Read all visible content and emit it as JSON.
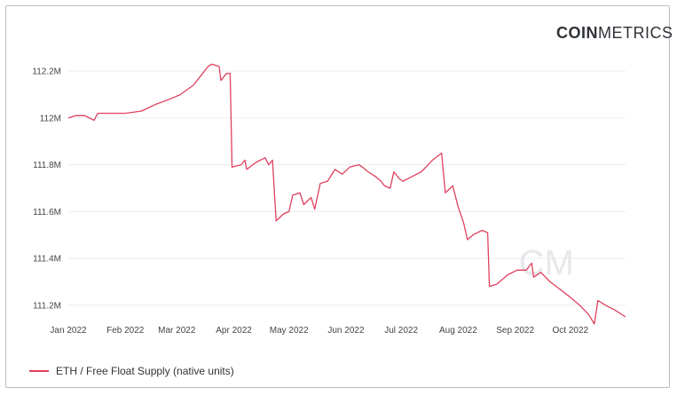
{
  "logo": {
    "bold": "COIN",
    "regular": "METRICS"
  },
  "watermark": "CM",
  "colors": {
    "series": "#e0405e",
    "grid": "#ececec",
    "logo": "#2f3338"
  },
  "chart_data": {
    "type": "line",
    "title": "",
    "xlabel": "",
    "ylabel": "",
    "legend_position": "bottom-left",
    "grid": true,
    "xlim": [
      "2022-01-01",
      "2022-10-31"
    ],
    "ylim": [
      111.15,
      112.25
    ],
    "x_ticks": [
      "Jan 2022",
      "Feb 2022",
      "Mar 2022",
      "Apr 2022",
      "May 2022",
      "Jun 2022",
      "Jul 2022",
      "Aug 2022",
      "Sep 2022",
      "Oct 2022"
    ],
    "y_ticks": [
      {
        "value": 112.2,
        "label": "112.2M"
      },
      {
        "value": 112.0,
        "label": "112M"
      },
      {
        "value": 111.8,
        "label": "111.8M"
      },
      {
        "value": 111.6,
        "label": "111.6M"
      },
      {
        "value": 111.4,
        "label": "111.4M"
      },
      {
        "value": 111.2,
        "label": "111.2M"
      }
    ],
    "series": [
      {
        "name": "ETH / Free Float Supply (native units)",
        "unit": "M",
        "points": [
          [
            "2022-01-01",
            112.0
          ],
          [
            "2022-01-05",
            112.01
          ],
          [
            "2022-01-10",
            112.01
          ],
          [
            "2022-01-15",
            111.99
          ],
          [
            "2022-01-17",
            112.02
          ],
          [
            "2022-01-25",
            112.02
          ],
          [
            "2022-02-01",
            112.02
          ],
          [
            "2022-02-10",
            112.03
          ],
          [
            "2022-02-18",
            112.06
          ],
          [
            "2022-02-25",
            112.08
          ],
          [
            "2022-03-03",
            112.1
          ],
          [
            "2022-03-10",
            112.14
          ],
          [
            "2022-03-15",
            112.19
          ],
          [
            "2022-03-18",
            112.22
          ],
          [
            "2022-03-20",
            112.23
          ],
          [
            "2022-03-24",
            112.22
          ],
          [
            "2022-03-25",
            112.16
          ],
          [
            "2022-03-28",
            112.19
          ],
          [
            "2022-03-30",
            112.19
          ],
          [
            "2022-03-31",
            111.79
          ],
          [
            "2022-04-05",
            111.8
          ],
          [
            "2022-04-07",
            111.82
          ],
          [
            "2022-04-08",
            111.78
          ],
          [
            "2022-04-13",
            111.81
          ],
          [
            "2022-04-18",
            111.83
          ],
          [
            "2022-04-20",
            111.8
          ],
          [
            "2022-04-22",
            111.82
          ],
          [
            "2022-04-24",
            111.56
          ],
          [
            "2022-04-28",
            111.59
          ],
          [
            "2022-05-01",
            111.6
          ],
          [
            "2022-05-03",
            111.67
          ],
          [
            "2022-05-07",
            111.68
          ],
          [
            "2022-05-09",
            111.63
          ],
          [
            "2022-05-13",
            111.66
          ],
          [
            "2022-05-15",
            111.61
          ],
          [
            "2022-05-18",
            111.72
          ],
          [
            "2022-05-22",
            111.73
          ],
          [
            "2022-05-26",
            111.78
          ],
          [
            "2022-05-30",
            111.76
          ],
          [
            "2022-06-03",
            111.79
          ],
          [
            "2022-06-08",
            111.8
          ],
          [
            "2022-06-10",
            111.79
          ],
          [
            "2022-06-13",
            111.77
          ],
          [
            "2022-06-17",
            111.75
          ],
          [
            "2022-06-20",
            111.73
          ],
          [
            "2022-06-22",
            111.71
          ],
          [
            "2022-06-25",
            111.7
          ],
          [
            "2022-06-27",
            111.77
          ],
          [
            "2022-06-30",
            111.74
          ],
          [
            "2022-07-02",
            111.73
          ],
          [
            "2022-07-07",
            111.75
          ],
          [
            "2022-07-12",
            111.77
          ],
          [
            "2022-07-18",
            111.82
          ],
          [
            "2022-07-23",
            111.85
          ],
          [
            "2022-07-25",
            111.68
          ],
          [
            "2022-07-29",
            111.71
          ],
          [
            "2022-08-01",
            111.62
          ],
          [
            "2022-08-04",
            111.55
          ],
          [
            "2022-08-06",
            111.48
          ],
          [
            "2022-08-09",
            111.5
          ],
          [
            "2022-08-14",
            111.52
          ],
          [
            "2022-08-17",
            111.51
          ],
          [
            "2022-08-18",
            111.28
          ],
          [
            "2022-08-22",
            111.29
          ],
          [
            "2022-08-28",
            111.33
          ],
          [
            "2022-09-02",
            111.35
          ],
          [
            "2022-09-07",
            111.35
          ],
          [
            "2022-09-10",
            111.38
          ],
          [
            "2022-09-11",
            111.32
          ],
          [
            "2022-09-15",
            111.34
          ],
          [
            "2022-09-20",
            111.3
          ],
          [
            "2022-09-25",
            111.27
          ],
          [
            "2022-09-30",
            111.24
          ],
          [
            "2022-10-06",
            111.2
          ],
          [
            "2022-10-11",
            111.16
          ],
          [
            "2022-10-14",
            111.12
          ],
          [
            "2022-10-16",
            111.22
          ],
          [
            "2022-10-20",
            111.2
          ],
          [
            "2022-10-25",
            111.18
          ],
          [
            "2022-10-31",
            111.15
          ]
        ]
      }
    ]
  }
}
